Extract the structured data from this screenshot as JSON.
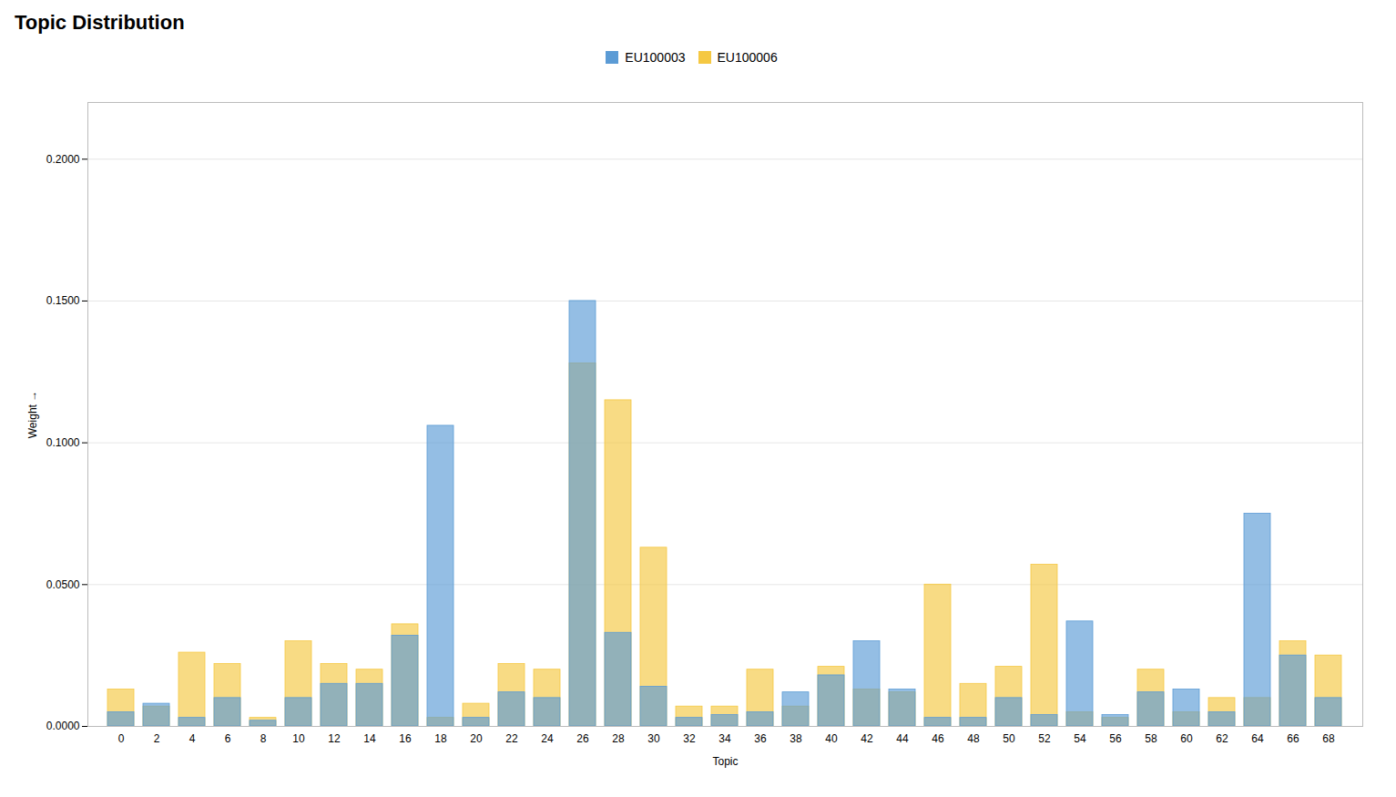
{
  "chart_data": {
    "type": "bar",
    "title": "Topic Distribution",
    "xlabel": "Topic",
    "ylabel": "Weight",
    "categories": [
      0,
      2,
      4,
      6,
      8,
      10,
      12,
      14,
      16,
      18,
      20,
      22,
      24,
      26,
      28,
      30,
      32,
      34,
      36,
      38,
      40,
      42,
      44,
      46,
      48,
      50,
      52,
      54,
      56,
      58,
      60,
      62,
      64,
      66,
      68
    ],
    "series": [
      {
        "name": "EU100003",
        "color": "#5B9BD5",
        "values": [
          0.005,
          0.008,
          0.003,
          0.01,
          0.002,
          0.01,
          0.015,
          0.015,
          0.032,
          0.106,
          0.003,
          0.012,
          0.01,
          0.15,
          0.033,
          0.014,
          0.003,
          0.004,
          0.005,
          0.012,
          0.018,
          0.03,
          0.013,
          0.003,
          0.003,
          0.01,
          0.004,
          0.037,
          0.004,
          0.012,
          0.013,
          0.005,
          0.075,
          0.025,
          0.01
        ]
      },
      {
        "name": "EU100006",
        "color": "#F5C842",
        "values": [
          0.013,
          0.007,
          0.026,
          0.022,
          0.003,
          0.03,
          0.022,
          0.02,
          0.036,
          0.003,
          0.008,
          0.022,
          0.02,
          0.128,
          0.115,
          0.063,
          0.007,
          0.007,
          0.02,
          0.007,
          0.021,
          0.013,
          0.012,
          0.05,
          0.015,
          0.021,
          0.057,
          0.005,
          0.003,
          0.02,
          0.005,
          0.01,
          0.01,
          0.03,
          0.025
        ]
      }
    ],
    "ylim": [
      0,
      0.22
    ],
    "yticks": [
      {
        "value": 0.0,
        "label": "0.0000"
      },
      {
        "value": 0.05,
        "label": "0.0500"
      },
      {
        "value": 0.1,
        "label": "0.1000"
      },
      {
        "value": 0.15,
        "label": "0.1500"
      },
      {
        "value": 0.2,
        "label": "0.2000"
      }
    ],
    "grid": true,
    "legend": "top"
  }
}
